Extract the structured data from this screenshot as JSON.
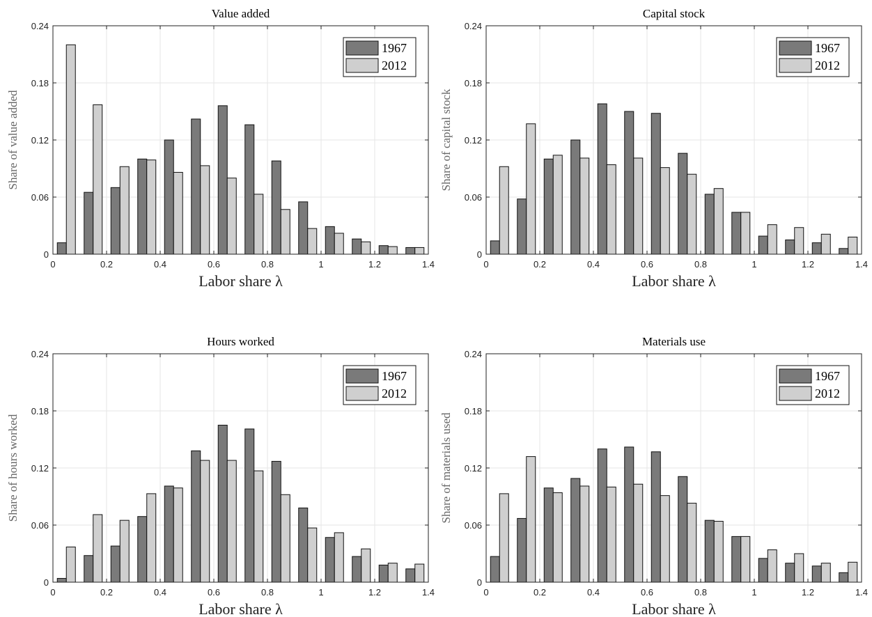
{
  "colors": {
    "series_1967": "#7a7a7a",
    "series_2012": "#cfcfcf",
    "grid": "#e6e6e6",
    "axis": "#222222"
  },
  "chart_data": [
    {
      "type": "bar",
      "title": "Value added",
      "ylabel": "Share of value added",
      "xlabel": "Labor share λ",
      "x": [
        0.05,
        0.15,
        0.25,
        0.35,
        0.45,
        0.55,
        0.65,
        0.75,
        0.85,
        0.95,
        1.05,
        1.15,
        1.25,
        1.35
      ],
      "series": [
        {
          "name": "1967",
          "values": [
            0.012,
            0.065,
            0.07,
            0.1,
            0.12,
            0.142,
            0.156,
            0.136,
            0.098,
            0.055,
            0.029,
            0.016,
            0.009,
            0.007
          ]
        },
        {
          "name": "2012",
          "values": [
            0.22,
            0.157,
            0.092,
            0.099,
            0.086,
            0.093,
            0.08,
            0.063,
            0.047,
            0.027,
            0.022,
            0.013,
            0.008,
            0.007
          ]
        }
      ],
      "xlim": [
        0,
        1.4
      ],
      "ylim": [
        0,
        0.24
      ],
      "xticks": [
        "0",
        "0.2",
        "0.4",
        "0.6",
        "0.8",
        "1",
        "1.2",
        "1.4"
      ],
      "yticks": [
        "0",
        "0.06",
        "0.12",
        "0.18",
        "0.24"
      ],
      "grid": true,
      "legend": "top-right"
    },
    {
      "type": "bar",
      "title": "Capital stock",
      "ylabel": "Share of capital stock",
      "xlabel": "Labor share λ",
      "x": [
        0.05,
        0.15,
        0.25,
        0.35,
        0.45,
        0.55,
        0.65,
        0.75,
        0.85,
        0.95,
        1.05,
        1.15,
        1.25,
        1.35
      ],
      "series": [
        {
          "name": "1967",
          "values": [
            0.014,
            0.058,
            0.1,
            0.12,
            0.158,
            0.15,
            0.148,
            0.106,
            0.063,
            0.044,
            0.019,
            0.015,
            0.012,
            0.006
          ]
        },
        {
          "name": "2012",
          "values": [
            0.092,
            0.137,
            0.104,
            0.101,
            0.094,
            0.101,
            0.091,
            0.084,
            0.069,
            0.044,
            0.031,
            0.028,
            0.021,
            0.018
          ]
        }
      ],
      "xlim": [
        0,
        1.4
      ],
      "ylim": [
        0,
        0.24
      ],
      "xticks": [
        "0",
        "0.2",
        "0.4",
        "0.6",
        "0.8",
        "1",
        "1.2",
        "1.4"
      ],
      "yticks": [
        "0",
        "0.06",
        "0.12",
        "0.18",
        "0.24"
      ],
      "grid": true,
      "legend": "top-right"
    },
    {
      "type": "bar",
      "title": "Hours worked",
      "ylabel": "Share of hours worked",
      "xlabel": "Labor share λ",
      "x": [
        0.05,
        0.15,
        0.25,
        0.35,
        0.45,
        0.55,
        0.65,
        0.75,
        0.85,
        0.95,
        1.05,
        1.15,
        1.25,
        1.35
      ],
      "series": [
        {
          "name": "1967",
          "values": [
            0.004,
            0.028,
            0.038,
            0.069,
            0.101,
            0.138,
            0.165,
            0.161,
            0.127,
            0.078,
            0.047,
            0.027,
            0.018,
            0.014
          ]
        },
        {
          "name": "2012",
          "values": [
            0.037,
            0.071,
            0.065,
            0.093,
            0.099,
            0.128,
            0.128,
            0.117,
            0.092,
            0.057,
            0.052,
            0.035,
            0.02,
            0.019
          ]
        }
      ],
      "xlim": [
        0,
        1.4
      ],
      "ylim": [
        0,
        0.24
      ],
      "xticks": [
        "0",
        "0.2",
        "0.4",
        "0.6",
        "0.8",
        "1",
        "1.2",
        "1.4"
      ],
      "yticks": [
        "0",
        "0.06",
        "0.12",
        "0.18",
        "0.24"
      ],
      "grid": true,
      "legend": "top-right"
    },
    {
      "type": "bar",
      "title": "Materials use",
      "ylabel": "Share of materials used",
      "xlabel": "Labor share λ",
      "x": [
        0.05,
        0.15,
        0.25,
        0.35,
        0.45,
        0.55,
        0.65,
        0.75,
        0.85,
        0.95,
        1.05,
        1.15,
        1.25,
        1.35
      ],
      "series": [
        {
          "name": "1967",
          "values": [
            0.027,
            0.067,
            0.099,
            0.109,
            0.14,
            0.142,
            0.137,
            0.111,
            0.065,
            0.048,
            0.025,
            0.02,
            0.017,
            0.01
          ]
        },
        {
          "name": "2012",
          "values": [
            0.093,
            0.132,
            0.094,
            0.101,
            0.1,
            0.103,
            0.091,
            0.083,
            0.064,
            0.048,
            0.034,
            0.03,
            0.02,
            0.021
          ]
        }
      ],
      "xlim": [
        0,
        1.4
      ],
      "ylim": [
        0,
        0.24
      ],
      "xticks": [
        "0",
        "0.2",
        "0.4",
        "0.6",
        "0.8",
        "1",
        "1.2",
        "1.4"
      ],
      "yticks": [
        "0",
        "0.06",
        "0.12",
        "0.18",
        "0.24"
      ],
      "grid": true,
      "legend": "top-right"
    }
  ]
}
